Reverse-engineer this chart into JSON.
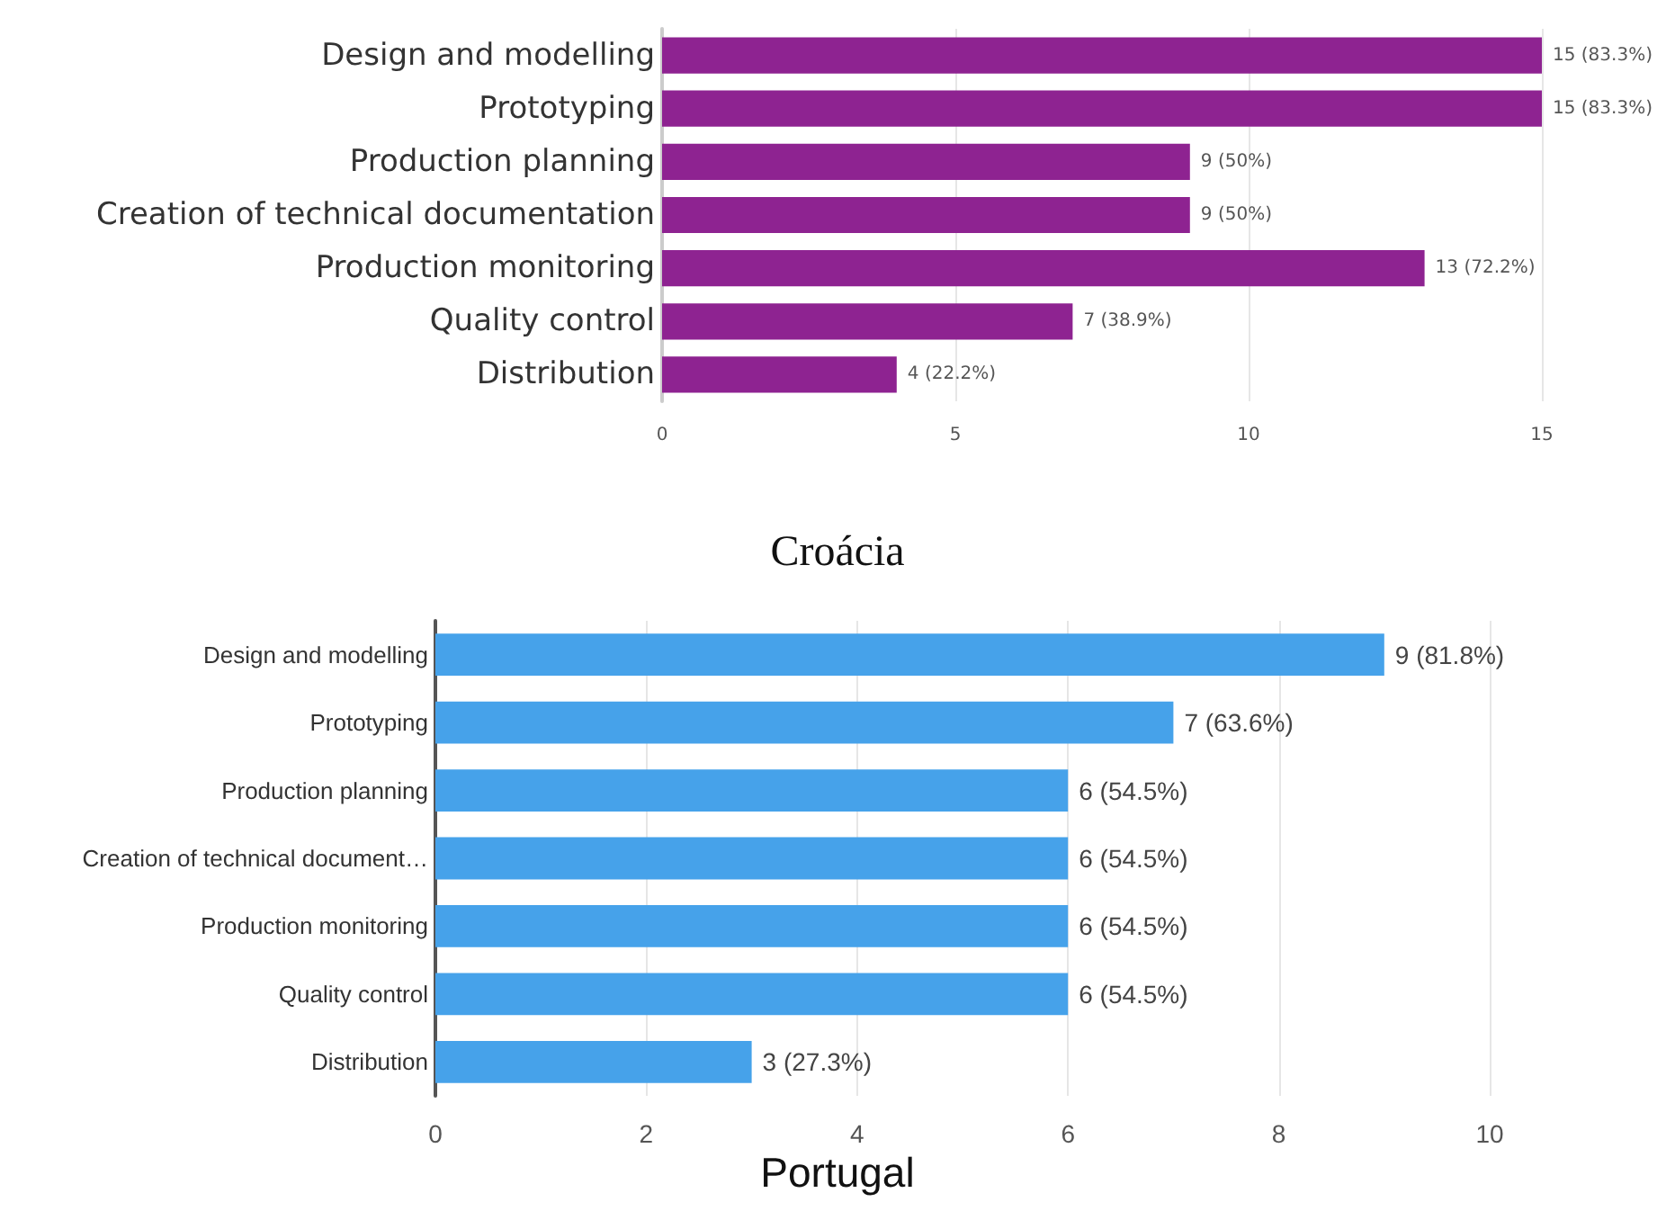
{
  "chart_data": [
    {
      "type": "bar",
      "orientation": "horizontal",
      "title": "Croácia",
      "categories": [
        "Design and modelling",
        "Prototyping",
        "Production planning",
        "Creation of technical documentation",
        "Production monitoring",
        "Quality control",
        "Distribution"
      ],
      "values": [
        15,
        15,
        9,
        9,
        13,
        7,
        4
      ],
      "value_labels": [
        "15 (83.3%)",
        "15 (83.3%)",
        "9 (50%)",
        "9 (50%)",
        "13 (72.2%)",
        "7 (38.9%)",
        "4 (22.2%)"
      ],
      "color": "#8e2391",
      "xlim": [
        0,
        15
      ],
      "xticks": [
        0,
        5,
        10,
        15
      ],
      "grid": "x"
    },
    {
      "type": "bar",
      "orientation": "horizontal",
      "title": "Portugal",
      "categories": [
        "Design and modelling",
        "Prototyping",
        "Production planning",
        "Creation of technical document…",
        "Production monitoring",
        "Quality control",
        "Distribution"
      ],
      "values": [
        9,
        7,
        6,
        6,
        6,
        6,
        3
      ],
      "value_labels": [
        "9 (81.8%)",
        "7 (63.6%)",
        "6 (54.5%)",
        "6 (54.5%)",
        "6 (54.5%)",
        "6 (54.5%)",
        "3 (27.3%)"
      ],
      "color": "#46a2ea",
      "xlim": [
        0,
        10
      ],
      "xticks": [
        0,
        2,
        4,
        6,
        8,
        10
      ],
      "grid": "x"
    }
  ]
}
